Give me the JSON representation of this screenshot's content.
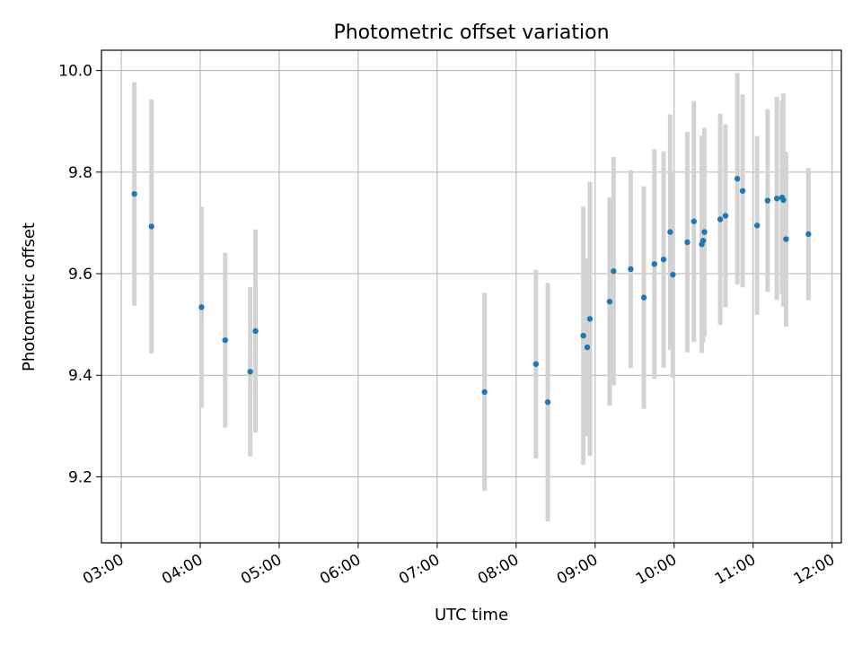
{
  "chart_data": {
    "type": "scatter",
    "title": "Photometric offset variation",
    "xlabel": "UTC time",
    "ylabel": "Photometric offset",
    "x_ticks": [
      "03:00",
      "04:00",
      "05:00",
      "06:00",
      "07:00",
      "08:00",
      "09:00",
      "10:00",
      "11:00",
      "12:00"
    ],
    "y_ticks": [
      "9.2",
      "9.4",
      "9.6",
      "9.8",
      "10.0"
    ],
    "xlim": [
      "02:45",
      "12:07"
    ],
    "ylim": [
      9.07,
      10.04
    ],
    "grid": true,
    "colors": {
      "point": "#1f77b4",
      "errorbar": "#d3d3d3",
      "grid": "#b0b0b0"
    },
    "points": [
      {
        "x": "03:10",
        "y": 9.757,
        "err": 0.22
      },
      {
        "x": "03:23",
        "y": 9.693,
        "err": 0.25
      },
      {
        "x": "04:01",
        "y": 9.534,
        "err": 0.198
      },
      {
        "x": "04:19",
        "y": 9.469,
        "err": 0.172
      },
      {
        "x": "04:38",
        "y": 9.407,
        "err": 0.167
      },
      {
        "x": "04:42",
        "y": 9.487,
        "err": 0.2
      },
      {
        "x": "07:36",
        "y": 9.367,
        "err": 0.195
      },
      {
        "x": "08:15",
        "y": 9.422,
        "err": 0.186
      },
      {
        "x": "08:24",
        "y": 9.347,
        "err": 0.235
      },
      {
        "x": "08:51",
        "y": 9.478,
        "err": 0.254
      },
      {
        "x": "08:54",
        "y": 9.455,
        "err": 0.175
      },
      {
        "x": "08:56",
        "y": 9.511,
        "err": 0.27
      },
      {
        "x": "09:11",
        "y": 9.545,
        "err": 0.205
      },
      {
        "x": "09:14",
        "y": 9.605,
        "err": 0.225
      },
      {
        "x": "09:27",
        "y": 9.609,
        "err": 0.195
      },
      {
        "x": "09:37",
        "y": 9.553,
        "err": 0.219
      },
      {
        "x": "09:45",
        "y": 9.619,
        "err": 0.226
      },
      {
        "x": "09:52",
        "y": 9.628,
        "err": 0.213
      },
      {
        "x": "09:57",
        "y": 9.682,
        "err": 0.232
      },
      {
        "x": "09:59",
        "y": 9.598,
        "err": 0.203
      },
      {
        "x": "10:10",
        "y": 9.662,
        "err": 0.217
      },
      {
        "x": "10:15",
        "y": 9.703,
        "err": 0.237
      },
      {
        "x": "10:21",
        "y": 9.658,
        "err": 0.214
      },
      {
        "x": "10:22",
        "y": 9.665,
        "err": 0.2
      },
      {
        "x": "10:23",
        "y": 9.682,
        "err": 0.205
      },
      {
        "x": "10:35",
        "y": 9.707,
        "err": 0.208
      },
      {
        "x": "10:39",
        "y": 9.714,
        "err": 0.18
      },
      {
        "x": "10:48",
        "y": 9.787,
        "err": 0.208
      },
      {
        "x": "10:52",
        "y": 9.763,
        "err": 0.19
      },
      {
        "x": "11:03",
        "y": 9.695,
        "err": 0.176
      },
      {
        "x": "11:11",
        "y": 9.744,
        "err": 0.18
      },
      {
        "x": "11:18",
        "y": 9.748,
        "err": 0.2
      },
      {
        "x": "11:22",
        "y": 9.75,
        "err": 0.19
      },
      {
        "x": "11:23",
        "y": 9.745,
        "err": 0.21
      },
      {
        "x": "11:25",
        "y": 9.668,
        "err": 0.172
      },
      {
        "x": "11:42",
        "y": 9.678,
        "err": 0.13
      }
    ]
  }
}
